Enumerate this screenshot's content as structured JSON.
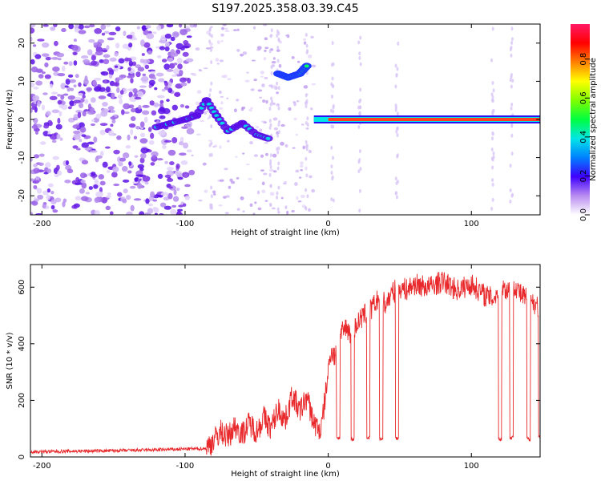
{
  "title": "S197.2025.358.03.39.C45",
  "chart_data": [
    {
      "type": "heatmap",
      "name": "spectrogram",
      "xlabel": "Height of straight line (km)",
      "ylabel": "Frequency (Hz)",
      "xlim": [
        -208,
        148
      ],
      "ylim": [
        -25,
        25
      ],
      "xticks": [
        -200,
        -100,
        0,
        100
      ],
      "yticks": [
        -20,
        -10,
        0,
        10,
        20
      ],
      "colorbar": {
        "label": "Normalized spectral amplitude",
        "range": [
          0,
          0.98
        ],
        "ticks": [
          0.0,
          0.2,
          0.4,
          0.6,
          0.8
        ]
      },
      "features": [
        {
          "description": "scattered noise",
          "x_range": [
            -208,
            -95
          ],
          "f_range": [
            -25,
            25
          ]
        },
        {
          "description": "tone track",
          "points": [
            [
              -120,
              -2
            ],
            [
              -110,
              -1
            ],
            [
              -100,
              0
            ],
            [
              -92,
              1
            ],
            [
              -85,
              5
            ],
            [
              -78,
              1
            ],
            [
              -70,
              -3
            ],
            [
              -60,
              -1
            ],
            [
              -50,
              -4
            ],
            [
              -42,
              -5
            ]
          ]
        },
        {
          "description": "upper tone",
          "points": [
            [
              -35,
              12
            ],
            [
              -28,
              11
            ],
            [
              -20,
              12
            ],
            [
              -15,
              14
            ]
          ]
        },
        {
          "description": "carrier line",
          "x_range": [
            -10,
            148
          ],
          "frequency": 0,
          "peak_amplitude": 0.95
        }
      ]
    },
    {
      "type": "line",
      "name": "snr",
      "xlabel": "Height of straight line (km)",
      "ylabel": "SNR (10 * v/v)",
      "xlim": [
        -208,
        148
      ],
      "ylim": [
        0,
        680
      ],
      "xticks": [
        -200,
        -100,
        0,
        100
      ],
      "yticks": [
        0,
        200,
        400,
        600
      ],
      "color": "#e8282a",
      "x": [
        -208,
        -180,
        -150,
        -120,
        -100,
        -85,
        -80,
        -75,
        -70,
        -65,
        -60,
        -55,
        -50,
        -45,
        -40,
        -35,
        -30,
        -25,
        -20,
        -15,
        -10,
        -5,
        0,
        2,
        5,
        8,
        10,
        13,
        16,
        20,
        25,
        30,
        35,
        40,
        45,
        50,
        55,
        60,
        70,
        80,
        90,
        100,
        110,
        115,
        118,
        120,
        125,
        130,
        135,
        140,
        145,
        148
      ],
      "values": [
        18,
        20,
        22,
        25,
        28,
        30,
        60,
        90,
        70,
        110,
        80,
        120,
        90,
        140,
        100,
        170,
        130,
        220,
        160,
        210,
        120,
        90,
        300,
        380,
        350,
        420,
        440,
        460,
        430,
        470,
        500,
        520,
        560,
        540,
        580,
        600,
        590,
        610,
        600,
        620,
        590,
        610,
        570,
        560,
        580,
        600,
        590,
        610,
        570,
        560,
        540,
        520
      ],
      "dropouts": [
        {
          "x": 7,
          "value": 60
        },
        {
          "x": 17,
          "value": 55
        },
        {
          "x": 28,
          "value": 60
        },
        {
          "x": 37,
          "value": 55
        },
        {
          "x": 48,
          "value": 60
        },
        {
          "x": 120,
          "value": 55
        },
        {
          "x": 128,
          "value": 60
        },
        {
          "x": 140,
          "value": 55
        },
        {
          "x": 148,
          "value": 60
        }
      ]
    }
  ]
}
